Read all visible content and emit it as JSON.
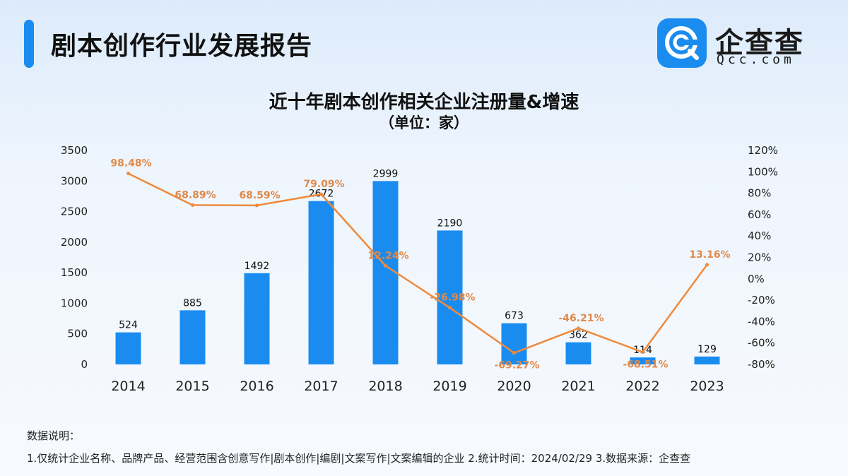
{
  "header": {
    "title": "剧本创作行业发展报告"
  },
  "logo": {
    "name": "企查查",
    "domain": "Qcc.com",
    "icon": "qcc-logo-icon"
  },
  "chart_data": {
    "type": "bar+line",
    "title": "近十年剧本创作相关企业注册量&增速",
    "subtitle": "（单位：家）",
    "categories": [
      "2014",
      "2015",
      "2016",
      "2017",
      "2018",
      "2019",
      "2020",
      "2021",
      "2022",
      "2023"
    ],
    "series": [
      {
        "type": "bar",
        "axis": "left",
        "color": "#1a8cf0",
        "values": [
          524,
          885,
          1492,
          2672,
          2999,
          2190,
          673,
          362,
          114,
          129
        ]
      },
      {
        "type": "line",
        "axis": "right",
        "color": "#ef8a3c",
        "values": [
          98.48,
          68.89,
          68.59,
          79.09,
          12.24,
          -26.98,
          -69.27,
          -46.21,
          -68.51,
          13.16
        ],
        "labels": [
          "98.48%",
          "68.89%",
          "68.59%",
          "79.09%",
          "12.24%",
          "-26.98%",
          "-69.27%",
          "-46.21%",
          "-68.51%",
          "13.16%"
        ]
      }
    ],
    "yleft": {
      "lim": [
        0,
        3500
      ],
      "ticks": [
        0,
        500,
        1000,
        1500,
        2000,
        2500,
        3000,
        3500
      ]
    },
    "yright": {
      "lim": [
        -80,
        120
      ],
      "ticks": [
        -80,
        -60,
        -40,
        -20,
        0,
        20,
        40,
        60,
        80,
        100,
        120
      ],
      "tick_labels": [
        "-80%",
        "-60%",
        "-40%",
        "-20%",
        "0%",
        "20%",
        "40%",
        "60%",
        "80%",
        "100%",
        "120%"
      ]
    },
    "grid": false,
    "legend": "none"
  },
  "notes": {
    "label": "数据说明：",
    "text": "1.仅统计企业名称、品牌产品、经营范围含创意写作|剧本创作|编剧|文案写作|文案编辑的企业   2.统计时间：2024/02/29   3.数据来源：企查查"
  }
}
